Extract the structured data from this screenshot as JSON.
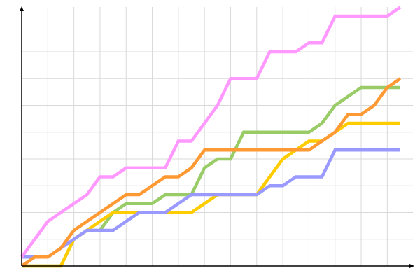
{
  "chart_data": {
    "type": "line",
    "title": "",
    "xlabel": "",
    "ylabel": "",
    "x": [
      0,
      1,
      2,
      3,
      4,
      5,
      6,
      7,
      8,
      9,
      10,
      11,
      12,
      13,
      14,
      15,
      16,
      17,
      18,
      19,
      20,
      21,
      22,
      23,
      24,
      25,
      26,
      27,
      28,
      29
    ],
    "xlim": [
      0,
      29
    ],
    "ylim": [
      0,
      29
    ],
    "grid": true,
    "legend": "none",
    "series": [
      {
        "color": "#99cc66",
        "values": [
          0,
          0,
          0,
          0,
          3,
          4,
          4,
          6,
          7,
          7,
          7,
          8,
          8,
          8,
          11,
          12,
          12,
          15,
          15,
          15,
          15,
          15,
          15,
          16,
          18,
          19,
          20,
          20,
          20,
          20
        ]
      },
      {
        "color": "#ffcc00",
        "values": [
          0,
          0,
          0,
          0,
          3,
          4,
          5,
          6,
          6,
          6,
          6,
          6,
          6,
          6,
          7,
          8,
          8,
          8,
          8,
          10,
          12,
          13,
          14,
          14,
          15,
          16,
          16,
          16,
          16,
          16
        ]
      },
      {
        "color": "#9999ff",
        "values": [
          1,
          1,
          1,
          2,
          3,
          4,
          4,
          4,
          5,
          6,
          6,
          6,
          7,
          8,
          8,
          8,
          8,
          8,
          8,
          9,
          9,
          10,
          10,
          10,
          13,
          13,
          13,
          13,
          13,
          13
        ]
      },
      {
        "color": "#ff9933",
        "values": [
          0,
          1,
          1,
          2,
          4,
          5,
          6,
          7,
          8,
          8,
          9,
          10,
          10,
          11,
          13,
          13,
          13,
          13,
          13,
          13,
          13,
          13,
          13,
          14,
          15,
          17,
          17,
          18,
          20,
          21
        ]
      },
      {
        "color": "#ff99ff",
        "values": [
          1,
          3,
          5,
          6,
          7,
          8,
          10,
          10,
          11,
          11,
          11,
          11,
          14,
          14,
          16,
          18,
          21,
          21,
          21,
          24,
          24,
          24,
          25,
          25,
          28,
          28,
          28,
          28,
          28,
          29
        ]
      }
    ]
  }
}
